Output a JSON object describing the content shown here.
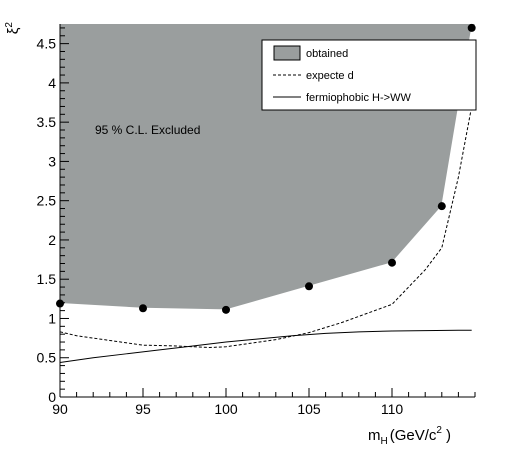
{
  "chart_data": {
    "type": "area",
    "title": "",
    "xlabel": "m_H (GeV/c^2)",
    "xlabel_main": "m",
    "xlabel_sub": "H",
    "xlabel_unit": "(GeV/c",
    "xlabel_sup": "2",
    "xlabel_close": ")",
    "ylabel": "ξ^2",
    "ylabel_main": "ξ",
    "ylabel_sup": "2",
    "xlim": [
      90,
      115
    ],
    "ylim": [
      0,
      4.75
    ],
    "x_ticks": [
      90,
      95,
      100,
      105,
      110
    ],
    "x_tick_labels": [
      "90",
      "95",
      "100",
      "105",
      "110"
    ],
    "y_ticks": [
      0,
      0.5,
      1,
      1.5,
      2,
      2.5,
      3,
      3.5,
      4,
      4.5
    ],
    "y_tick_labels": [
      "0",
      "0.5",
      "1",
      "1.5",
      "2",
      "2.5",
      "3",
      "3.5",
      "4",
      "4.5"
    ],
    "grid": false,
    "annotation": "95 % C.L. Excluded",
    "legend": {
      "position": "top-right",
      "entries": [
        {
          "label": "obtained",
          "style": "filled-box"
        },
        {
          "label": "expecte d",
          "style": "dashed-line"
        },
        {
          "label": "fermiophobic H->WW",
          "style": "solid-line"
        }
      ]
    },
    "series": [
      {
        "name": "obtained",
        "kind": "filled-area-with-markers",
        "color": "#9a9e9e",
        "x": [
          90,
          95,
          100,
          105,
          110,
          113,
          114.8
        ],
        "y": [
          1.19,
          1.13,
          1.11,
          1.41,
          1.71,
          2.43,
          4.7
        ]
      },
      {
        "name": "expecte d",
        "kind": "dashed-line",
        "x": [
          90,
          91,
          93,
          95,
          97,
          99,
          100,
          101,
          103,
          105,
          107,
          110,
          112,
          113,
          114,
          114.8
        ],
        "y": [
          0.83,
          0.78,
          0.72,
          0.66,
          0.65,
          0.63,
          0.64,
          0.67,
          0.73,
          0.82,
          0.95,
          1.18,
          1.62,
          1.9,
          2.8,
          3.7
        ]
      },
      {
        "name": "fermiophobic H->WW",
        "kind": "solid-line",
        "x": [
          90,
          92,
          94,
          96,
          98,
          100,
          102,
          104,
          106,
          108,
          110,
          112,
          114,
          114.8
        ],
        "y": [
          0.44,
          0.5,
          0.55,
          0.6,
          0.65,
          0.7,
          0.74,
          0.78,
          0.81,
          0.83,
          0.84,
          0.845,
          0.85,
          0.85
        ]
      }
    ],
    "colors": {
      "fill": "#9a9e9e",
      "line": "#000000"
    }
  }
}
